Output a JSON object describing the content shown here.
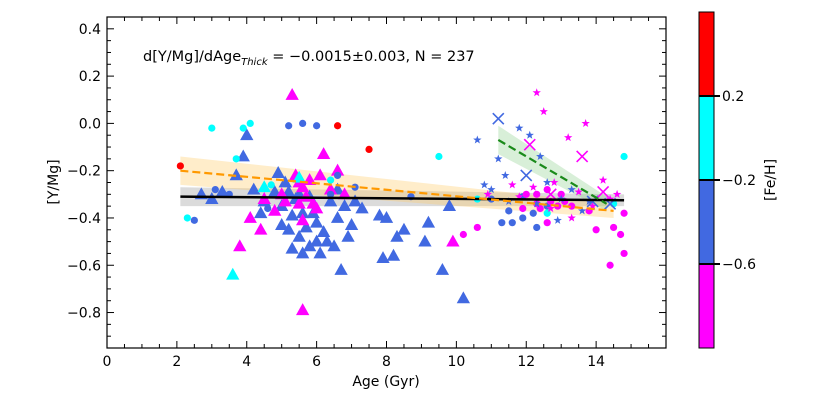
{
  "chart_data": {
    "type": "scatter",
    "annotation_main": "d[Y/Mg]/dAge",
    "annotation_sub": "Thick",
    "annotation_rest": " = −0.0015±0.003, N = 237",
    "xlabel": "Age (Gyr)",
    "ylabel": "[Y/Mg]",
    "xlim": [
      0,
      16
    ],
    "ylim": [
      -0.95,
      0.45
    ],
    "xticks": [
      0,
      2,
      4,
      6,
      8,
      10,
      12,
      14
    ],
    "xtick_labels": [
      "0",
      "2",
      "4",
      "6",
      "8",
      "10",
      "12",
      "14"
    ],
    "yticks": [
      0.4,
      0.2,
      0.0,
      -0.2,
      -0.4,
      -0.6,
      -0.8
    ],
    "ytick_labels": [
      "0.4",
      "0.2",
      "0.0",
      "−0.2",
      "−0.4",
      "−0.6",
      "−0.8"
    ],
    "colorbar": {
      "label": "[Fe/H]",
      "range": [
        -1.0,
        0.6
      ],
      "bands": [
        {
          "from": 0.2,
          "to": 0.6,
          "color": "#ff0000"
        },
        {
          "from": -0.2,
          "to": 0.2,
          "color": "#00ffff"
        },
        {
          "from": -0.6,
          "to": -0.2,
          "color": "#4169e1"
        },
        {
          "from": -1.0,
          "to": -0.6,
          "color": "#ff00ff"
        }
      ],
      "ticks": [
        0.2,
        -0.2,
        -0.6
      ],
      "tick_labels": [
        "0.2",
        "−0.2",
        "−0.6"
      ]
    },
    "fits": [
      {
        "name": "overall",
        "color": "#000000",
        "dash": "solid",
        "x": [
          2.1,
          14.8
        ],
        "y": [
          -0.31,
          -0.325
        ],
        "band_color": "#999999",
        "band_halfwidth": [
          0.04,
          0.025
        ]
      },
      {
        "name": "thick",
        "color": "#ff9900",
        "dash": "dashed",
        "x": [
          2.1,
          14.5
        ],
        "y": [
          -0.2,
          -0.37
        ],
        "band_color": "#ffcc66",
        "band_halfwidth": [
          0.06,
          0.03
        ]
      },
      {
        "name": "halo",
        "color": "#1a8a1a",
        "dash": "dashed",
        "x": [
          11.2,
          14.3
        ],
        "y": [
          -0.07,
          -0.34
        ],
        "band_color": "#90d090",
        "band_halfwidth": [
          0.06,
          0.03
        ]
      }
    ],
    "series": [
      {
        "name": "triangles-blue",
        "marker": "triangle",
        "color": "#4169e1",
        "points": [
          [
            3.9,
            -0.14
          ],
          [
            4.0,
            -0.05
          ],
          [
            3.7,
            -0.22
          ],
          [
            4.9,
            -0.21
          ],
          [
            5.1,
            -0.25
          ],
          [
            4.5,
            -0.33
          ],
          [
            4.4,
            -0.38
          ],
          [
            4.2,
            -0.28
          ],
          [
            5.0,
            -0.35
          ],
          [
            5.2,
            -0.29
          ],
          [
            5.4,
            -0.32
          ],
          [
            5.3,
            -0.39
          ],
          [
            5.5,
            -0.3
          ],
          [
            5.6,
            -0.38
          ],
          [
            5.2,
            -0.45
          ],
          [
            5.5,
            -0.48
          ],
          [
            5.8,
            -0.31
          ],
          [
            5.9,
            -0.38
          ],
          [
            6.0,
            -0.42
          ],
          [
            6.2,
            -0.46
          ],
          [
            6.4,
            -0.33
          ],
          [
            6.6,
            -0.4
          ],
          [
            6.8,
            -0.35
          ],
          [
            6.3,
            -0.5
          ],
          [
            5.8,
            -0.52
          ],
          [
            6.1,
            -0.55
          ],
          [
            5.6,
            -0.55
          ],
          [
            6.5,
            -0.52
          ],
          [
            6.9,
            -0.48
          ],
          [
            7.0,
            -0.43
          ],
          [
            7.3,
            -0.36
          ],
          [
            5.7,
            -0.44
          ],
          [
            6.7,
            -0.62
          ],
          [
            5.3,
            -0.53
          ],
          [
            7.8,
            -0.39
          ],
          [
            8.0,
            -0.4
          ],
          [
            8.3,
            -0.48
          ],
          [
            8.2,
            -0.56
          ],
          [
            7.9,
            -0.57
          ],
          [
            8.5,
            -0.45
          ],
          [
            9.1,
            -0.5
          ],
          [
            9.6,
            -0.62
          ],
          [
            10.2,
            -0.74
          ],
          [
            9.2,
            -0.42
          ],
          [
            9.8,
            -0.35
          ],
          [
            4.8,
            -0.29
          ],
          [
            2.7,
            -0.3
          ],
          [
            3.0,
            -0.32
          ],
          [
            3.3,
            -0.29
          ],
          [
            5.0,
            -0.43
          ],
          [
            6.0,
            -0.5
          ],
          [
            6.6,
            -0.28
          ],
          [
            7.1,
            -0.33
          ]
        ]
      },
      {
        "name": "triangles-magenta",
        "marker": "triangle",
        "color": "#ff00ff",
        "points": [
          [
            5.3,
            0.12
          ],
          [
            5.4,
            -0.22
          ],
          [
            5.5,
            -0.25
          ],
          [
            5.6,
            -0.27
          ],
          [
            5.7,
            -0.31
          ],
          [
            6.2,
            -0.13
          ],
          [
            6.6,
            -0.2
          ],
          [
            4.8,
            -0.37
          ],
          [
            5.0,
            -0.3
          ],
          [
            5.6,
            -0.41
          ],
          [
            4.4,
            -0.45
          ],
          [
            4.1,
            -0.4
          ],
          [
            3.8,
            -0.52
          ],
          [
            6.0,
            -0.36
          ],
          [
            5.6,
            -0.79
          ],
          [
            9.9,
            -0.5
          ],
          [
            6.4,
            -0.28
          ],
          [
            5.8,
            -0.24
          ],
          [
            6.8,
            -0.3
          ],
          [
            5.9,
            -0.34
          ],
          [
            5.1,
            -0.33
          ],
          [
            4.5,
            -0.32
          ],
          [
            6.1,
            -0.22
          ],
          [
            5.5,
            -0.34
          ]
        ]
      },
      {
        "name": "triangles-cyan",
        "marker": "triangle",
        "color": "#00ffff",
        "points": [
          [
            3.6,
            -0.64
          ],
          [
            5.5,
            -0.23
          ],
          [
            4.5,
            -0.27
          ]
        ]
      },
      {
        "name": "circles-blue",
        "marker": "circle",
        "color": "#4169e1",
        "points": [
          [
            2.5,
            -0.41
          ],
          [
            3.1,
            -0.28
          ],
          [
            3.5,
            -0.3
          ],
          [
            4.6,
            -0.36
          ],
          [
            5.6,
            0.0
          ],
          [
            6.6,
            -0.22
          ],
          [
            7.1,
            -0.27
          ],
          [
            6.0,
            -0.01
          ],
          [
            6.4,
            -0.3
          ],
          [
            5.2,
            -0.01
          ],
          [
            8.7,
            -0.31
          ],
          [
            11.6,
            -0.42
          ],
          [
            11.9,
            -0.4
          ],
          [
            12.2,
            -0.38
          ],
          [
            11.9,
            -0.31
          ],
          [
            12.3,
            -0.44
          ],
          [
            11.3,
            -0.42
          ],
          [
            11.5,
            -0.37
          ],
          [
            12.6,
            -0.35
          ],
          [
            11.0,
            -0.32
          ]
        ]
      },
      {
        "name": "circles-magenta",
        "marker": "circle",
        "color": "#ff00ff",
        "points": [
          [
            12.3,
            -0.3
          ],
          [
            12.4,
            -0.36
          ],
          [
            12.6,
            -0.42
          ],
          [
            13.0,
            -0.3
          ],
          [
            12.9,
            -0.35
          ],
          [
            12.6,
            -0.28
          ],
          [
            13.1,
            -0.33
          ],
          [
            13.3,
            -0.35
          ],
          [
            11.9,
            -0.36
          ],
          [
            12.0,
            -0.3
          ],
          [
            10.2,
            -0.47
          ],
          [
            10.6,
            -0.44
          ],
          [
            14.0,
            -0.45
          ],
          [
            14.5,
            -0.44
          ],
          [
            14.8,
            -0.38
          ],
          [
            14.4,
            -0.6
          ],
          [
            14.7,
            -0.47
          ],
          [
            12.7,
            -0.33
          ],
          [
            13.8,
            -0.37
          ],
          [
            12.3,
            -0.34
          ],
          [
            14.8,
            -0.55
          ]
        ]
      },
      {
        "name": "circles-cyan",
        "marker": "circle",
        "color": "#00ffff",
        "points": [
          [
            3.0,
            -0.02
          ],
          [
            3.9,
            -0.02
          ],
          [
            4.1,
            0.0
          ],
          [
            4.7,
            -0.26
          ],
          [
            6.4,
            -0.24
          ],
          [
            9.5,
            -0.14
          ],
          [
            10.6,
            -0.32
          ],
          [
            14.8,
            -0.14
          ],
          [
            14.5,
            -0.34
          ],
          [
            12.6,
            -0.38
          ],
          [
            3.7,
            -0.15
          ],
          [
            2.3,
            -0.4
          ]
        ]
      },
      {
        "name": "circles-red",
        "marker": "circle",
        "color": "#ff0000",
        "points": [
          [
            2.1,
            -0.18
          ],
          [
            6.6,
            -0.01
          ],
          [
            7.5,
            -0.11
          ]
        ]
      },
      {
        "name": "stars-blue",
        "marker": "star",
        "color": "#4169e1",
        "points": [
          [
            10.6,
            -0.07
          ],
          [
            11.2,
            -0.15
          ],
          [
            11.4,
            -0.22
          ],
          [
            10.8,
            -0.26
          ],
          [
            11.8,
            -0.02
          ],
          [
            12.1,
            -0.05
          ],
          [
            12.4,
            -0.14
          ],
          [
            12.6,
            -0.25
          ],
          [
            13.0,
            -0.32
          ],
          [
            13.3,
            -0.28
          ],
          [
            13.6,
            -0.37
          ],
          [
            12.3,
            -0.34
          ],
          [
            11.5,
            -0.33
          ],
          [
            11.0,
            -0.28
          ],
          [
            12.9,
            -0.41
          ],
          [
            13.8,
            -0.33
          ]
        ]
      },
      {
        "name": "stars-magenta",
        "marker": "star",
        "color": "#ff00ff",
        "points": [
          [
            12.3,
            0.13
          ],
          [
            12.5,
            0.05
          ],
          [
            13.2,
            -0.06
          ],
          [
            13.7,
            0.0
          ],
          [
            14.2,
            -0.24
          ],
          [
            14.6,
            -0.3
          ],
          [
            12.2,
            -0.27
          ],
          [
            11.8,
            -0.31
          ],
          [
            10.9,
            -0.3
          ],
          [
            11.6,
            -0.26
          ],
          [
            12.8,
            -0.25
          ],
          [
            13.5,
            -0.29
          ],
          [
            13.9,
            -0.35
          ],
          [
            14.4,
            -0.32
          ],
          [
            12.7,
            -0.36
          ],
          [
            13.3,
            -0.4
          ]
        ]
      },
      {
        "name": "crosses-blue",
        "marker": "x",
        "color": "#4169e1",
        "points": [
          [
            11.2,
            0.02
          ],
          [
            12.0,
            -0.22
          ],
          [
            13.9,
            -0.33
          ],
          [
            14.4,
            -0.34
          ]
        ]
      },
      {
        "name": "crosses-magenta",
        "marker": "x",
        "color": "#ff00ff",
        "points": [
          [
            12.1,
            -0.09
          ],
          [
            13.6,
            -0.14
          ],
          [
            14.2,
            -0.29
          ],
          [
            12.7,
            -0.3
          ]
        ]
      }
    ]
  }
}
